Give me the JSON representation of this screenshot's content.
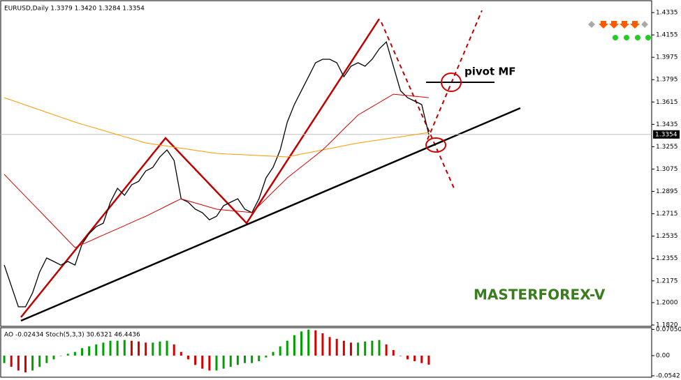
{
  "chart_data": [
    {
      "type": "line",
      "title": "EURUSD,Daily  1.3379 1.3420 1.3284 1.3354",
      "annotations": [
        "pivot MF",
        "MASTERFOREX-V"
      ],
      "price_marker": {
        "value": 1.3354,
        "label": "1.3354"
      },
      "categories": [
        null,
        null,
        null,
        null,
        null,
        null,
        null,
        null,
        null,
        null,
        null,
        null,
        null,
        null,
        null,
        null,
        null,
        null,
        null,
        null,
        null,
        null,
        null,
        null,
        null,
        null,
        null,
        null,
        null,
        null,
        null,
        null,
        null,
        null,
        null,
        null,
        null,
        null,
        null,
        null,
        null,
        null,
        null,
        null,
        null,
        null,
        null,
        null,
        null,
        null,
        null,
        null,
        null,
        null,
        null,
        null,
        null,
        null,
        null,
        null,
        null,
        null,
        null,
        null,
        null,
        null,
        null,
        null,
        null,
        null,
        null,
        null,
        null,
        null,
        null,
        null,
        null,
        null,
        null,
        null,
        null,
        null,
        null,
        null,
        null,
        null,
        null,
        null,
        null,
        null,
        null,
        null
      ],
      "series": [
        {
          "color": "#000000",
          "values": [
            1.2302,
            1.2134,
            1.1966,
            1.1966,
            1.2078,
            1.2246,
            1.2359,
            1.2331,
            1.2302,
            1.2331,
            1.2302,
            1.2471,
            1.2555,
            1.2611,
            1.2639,
            1.2808,
            1.292,
            1.2864,
            1.2948,
            1.2976,
            1.306,
            1.3089,
            1.3173,
            1.3229,
            1.3145,
            1.2836,
            1.2808,
            1.2752,
            1.2724,
            1.2667,
            1.2695,
            1.278,
            1.2808,
            1.2836,
            1.2752,
            1.2724,
            1.2836,
            1.3004,
            1.3089,
            1.3229,
            1.3453,
            1.3594,
            1.3706,
            1.3818,
            1.3931,
            1.3959,
            1.3959,
            1.3931,
            1.3818,
            1.3903,
            1.3931,
            1.3903,
            1.3959,
            1.4043,
            1.4099,
            1.3903,
            1.3706,
            1.365,
            1.3622,
            1.3594,
            1.3354,
            null,
            null,
            null,
            null,
            null,
            null,
            null,
            null,
            null,
            null,
            null,
            null,
            null,
            null,
            null,
            null,
            null,
            null,
            null,
            null,
            null,
            null,
            null,
            null,
            null,
            null,
            null,
            null,
            null,
            null,
            null
          ]
        },
        {
          "color": "#ff9900",
          "values": [
            1.365,
            1.363,
            1.3611,
            1.3591,
            1.3571,
            1.3552,
            1.3532,
            1.3512,
            1.3492,
            1.3473,
            1.3453,
            1.3436,
            1.3419,
            1.3403,
            1.3386,
            1.3369,
            1.3352,
            1.3335,
            1.3319,
            1.3302,
            1.3285,
            1.3277,
            1.3268,
            1.326,
            1.3251,
            1.3243,
            1.3235,
            1.3226,
            1.3218,
            1.3209,
            1.3201,
            1.3198,
            1.3195,
            1.3193,
            1.319,
            1.3187,
            1.3184,
            1.3181,
            1.3179,
            1.3176,
            1.3173,
            1.3184,
            1.3196,
            1.3207,
            1.3218,
            1.3229,
            1.324,
            1.3251,
            1.3263,
            1.3274,
            1.3285,
            1.3293,
            1.3302,
            1.331,
            1.3319,
            1.3327,
            1.3335,
            1.3344,
            1.3352,
            1.3361,
            1.3369,
            null,
            null,
            null,
            null,
            null,
            null,
            null,
            null,
            null,
            null,
            null,
            null,
            null,
            null,
            null,
            null,
            null,
            null,
            null,
            null,
            null,
            null,
            null,
            null,
            null,
            null,
            null,
            null,
            null,
            null,
            null
          ]
        },
        {
          "color": "#d40000",
          "values": [
            1.3032,
            1.2973,
            1.2914,
            1.2855,
            1.2796,
            1.2738,
            1.2679,
            1.262,
            1.2561,
            1.2502,
            1.2443,
            1.2468,
            1.2493,
            1.2519,
            1.2544,
            1.2569,
            1.2594,
            1.2619,
            1.2645,
            1.267,
            1.2695,
            1.2723,
            1.2751,
            1.278,
            1.2808,
            1.2836,
            1.2819,
            1.2802,
            1.2786,
            1.2769,
            1.2752,
            1.2746,
            1.2741,
            1.2735,
            1.273,
            1.2724,
            1.278,
            1.2836,
            1.2892,
            1.2948,
            1.3004,
            1.3049,
            1.3094,
            1.3139,
            1.3184,
            1.3229,
            1.3285,
            1.3341,
            1.3398,
            1.3454,
            1.351,
            1.3544,
            1.3577,
            1.3611,
            1.3644,
            1.3678,
            1.3672,
            1.3667,
            1.3661,
            1.3656,
            1.365,
            null,
            null,
            null,
            null,
            null,
            null,
            null,
            null,
            null,
            null,
            null,
            null,
            null,
            null,
            null,
            null,
            null,
            null,
            null,
            null,
            null,
            null,
            null,
            null,
            null,
            null,
            null,
            null,
            null,
            null,
            null
          ]
        }
      ],
      "ylim": [
        1.1809,
        1.4425
      ],
      "yticks": [
        1.4335,
        1.4155,
        1.3975,
        1.3795,
        1.3615,
        1.3435,
        1.3255,
        1.3075,
        1.2895,
        1.2715,
        1.2535,
        1.2355,
        1.2175,
        {
          "value": 1.2,
          "label": "1.2000"
        },
        {
          "value": 1.182,
          "label": "1.1820"
        }
      ]
    },
    {
      "type": "bar",
      "title": "AO -0.02434 Stoch(5,3,3) 30.6321 46.4436",
      "up_color": "#00a000",
      "down_color": "#d40000",
      "categories": [
        null,
        null,
        null,
        null,
        null,
        null,
        null,
        null,
        null,
        null,
        null,
        null,
        null,
        null,
        null,
        null,
        null,
        null,
        null,
        null,
        null,
        null,
        null,
        null,
        null,
        null,
        null,
        null,
        null,
        null,
        null,
        null,
        null,
        null,
        null,
        null,
        null,
        null,
        null,
        null,
        null,
        null,
        null,
        null,
        null,
        null,
        null,
        null,
        null,
        null,
        null,
        null,
        null,
        null,
        null,
        null,
        null,
        null,
        null,
        null,
        null,
        null,
        null,
        null,
        null,
        null,
        null,
        null,
        null,
        null,
        null,
        null,
        null,
        null,
        null,
        null,
        null,
        null,
        null,
        null,
        null,
        null,
        null,
        null,
        null,
        null,
        null,
        null,
        null,
        null,
        null,
        null
      ],
      "values": [
        -0.02,
        -0.03,
        -0.04,
        -0.045,
        -0.04,
        -0.03,
        -0.02,
        -0.01,
        0.0,
        0.005,
        0.01,
        0.02,
        0.025,
        0.03,
        0.035,
        0.04,
        0.04,
        0.042,
        0.04,
        0.038,
        0.035,
        0.035,
        0.038,
        0.04,
        0.03,
        0.01,
        -0.01,
        -0.025,
        -0.035,
        -0.04,
        -0.04,
        -0.035,
        -0.03,
        -0.025,
        -0.02,
        -0.02,
        -0.015,
        -0.005,
        0.01,
        0.025,
        0.04,
        0.055,
        0.065,
        0.07,
        0.068,
        0.06,
        0.05,
        0.045,
        0.04,
        0.035,
        0.035,
        0.038,
        0.04,
        0.042,
        0.03,
        0.015,
        0.0,
        -0.01,
        -0.015,
        -0.02,
        -0.02434,
        null,
        null,
        null,
        null,
        null,
        null,
        null,
        null,
        null,
        null,
        null,
        null,
        null,
        null,
        null,
        null,
        null,
        null,
        null,
        null,
        null,
        null,
        null,
        null,
        null,
        null,
        null,
        null,
        null,
        null,
        null
      ],
      "ylim": [
        -0.058,
        0.075
      ],
      "yticks": [
        {
          "value": 0.0705,
          "label": "0.07050"
        },
        {
          "value": 0,
          "label": "0.00"
        },
        -0.0542
      ]
    }
  ]
}
